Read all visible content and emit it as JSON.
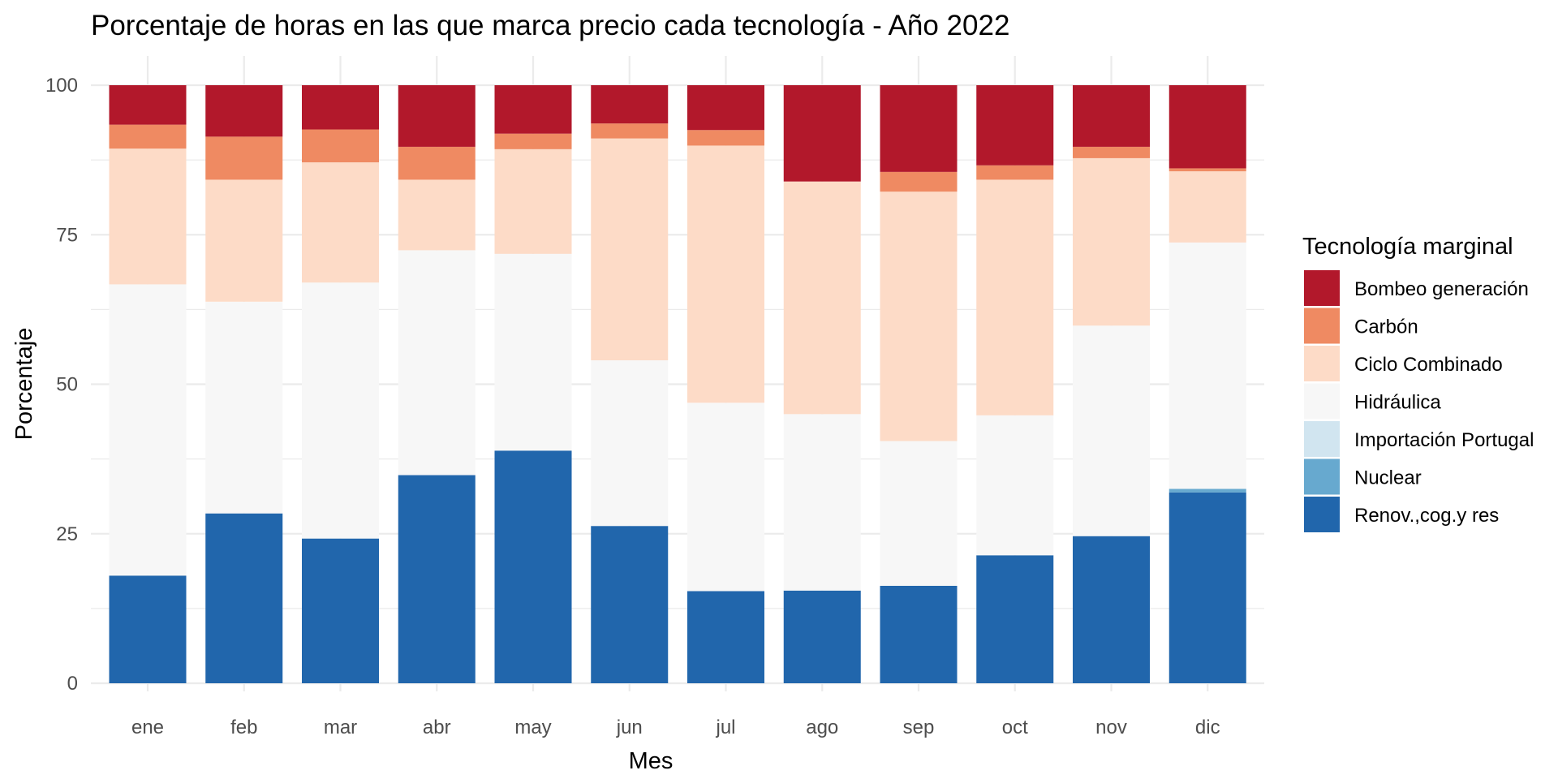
{
  "chart_data": {
    "type": "bar",
    "stacked": true,
    "title": "Porcentaje de horas en las que marca precio cada tecnología - Año 2022",
    "xlabel": "Mes",
    "ylabel": "Porcentaje",
    "ylim": [
      0,
      100
    ],
    "yticks": [
      "0",
      "25",
      "50",
      "75",
      "100"
    ],
    "grid": true,
    "legend_position": "right",
    "legend_title": "Tecnología marginal",
    "categories": [
      "ene",
      "feb",
      "mar",
      "abr",
      "may",
      "jun",
      "jul",
      "ago",
      "sep",
      "oct",
      "nov",
      "dic"
    ],
    "series": [
      {
        "name": "Renov.,cog.y res",
        "color": "#2166ac",
        "values": [
          18.0,
          28.4,
          24.2,
          34.8,
          38.9,
          26.3,
          15.4,
          15.5,
          16.3,
          21.4,
          24.6,
          31.9
        ]
      },
      {
        "name": "Nuclear",
        "color": "#67a9cf",
        "values": [
          0,
          0,
          0,
          0,
          0,
          0,
          0,
          0,
          0,
          0,
          0,
          0.6
        ]
      },
      {
        "name": "Importación Portugal",
        "color": "#d1e5f0",
        "values": [
          0,
          0,
          0,
          0,
          0,
          0,
          0,
          0,
          0,
          0,
          0,
          0
        ]
      },
      {
        "name": "Hidráulica",
        "color": "#f7f7f7",
        "values": [
          48.7,
          35.4,
          42.8,
          37.6,
          32.9,
          27.7,
          31.5,
          29.5,
          24.2,
          23.4,
          35.2,
          41.2
        ]
      },
      {
        "name": "Ciclo Combinado",
        "color": "#fddbc7",
        "values": [
          22.7,
          20.4,
          20.1,
          11.8,
          17.5,
          37.1,
          43.0,
          38.9,
          41.7,
          39.4,
          28.0,
          11.9
        ]
      },
      {
        "name": "Carbón",
        "color": "#ef8a62",
        "values": [
          4.0,
          7.2,
          5.5,
          5.5,
          2.6,
          2.5,
          2.6,
          0,
          3.3,
          2.4,
          1.9,
          0.5
        ]
      },
      {
        "name": "Bombeo generación",
        "color": "#b2182b",
        "values": [
          6.6,
          8.6,
          7.4,
          10.3,
          8.1,
          6.4,
          7.5,
          16.1,
          14.5,
          13.4,
          10.3,
          13.9
        ]
      }
    ]
  }
}
